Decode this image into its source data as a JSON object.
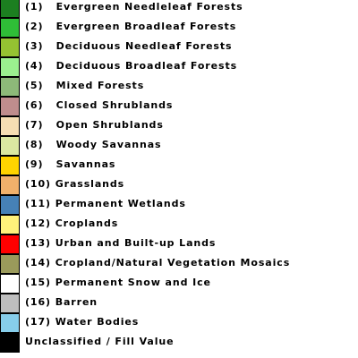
{
  "legend": {
    "items": [
      {
        "label": "(1)   Evergreen Needleleaf Forests",
        "color": "#1c7f20"
      },
      {
        "label": "(2)   Evergreen Broadleaf Forests",
        "color": "#2fbe37"
      },
      {
        "label": "(3)   Deciduous Needleaf Forests",
        "color": "#95c232"
      },
      {
        "label": "(4)   Deciduous Broadleaf Forests",
        "color": "#9bf08f"
      },
      {
        "label": "(5)   Mixed Forests",
        "color": "#8db979"
      },
      {
        "label": "(6)   Closed Shrublands",
        "color": "#bf8d8d"
      },
      {
        "label": "(7)   Open Shrublands",
        "color": "#f5deb3"
      },
      {
        "label": "(8)   Woody Savannas",
        "color": "#dbe8a1"
      },
      {
        "label": "(9)   Savannas",
        "color": "#ffd400"
      },
      {
        "label": "(10) Grasslands",
        "color": "#f1b16b"
      },
      {
        "label": "(11) Permanent Wetlands",
        "color": "#4681b6"
      },
      {
        "label": "(12) Croplands",
        "color": "#fff27b"
      },
      {
        "label": "(13) Urban and Built-up Lands",
        "color": "#ff0000"
      },
      {
        "label": "(14) Cropland/Natural Vegetation Mosaics",
        "color": "#9a9a5b"
      },
      {
        "label": "(15) Permanent Snow and Ice",
        "color": "#ffffff"
      },
      {
        "label": "(16) Barren",
        "color": "#bebebe"
      },
      {
        "label": "(17) Water Bodies",
        "color": "#87ceeb"
      },
      {
        "label": "Unclassified / Fill Value",
        "color": "#000000"
      }
    ]
  }
}
